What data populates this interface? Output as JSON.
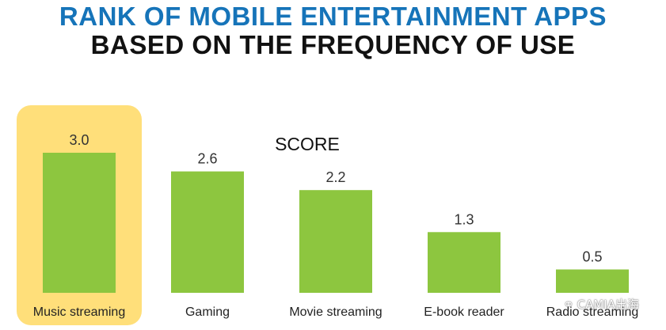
{
  "colors": {
    "title_primary": "#1674b9",
    "title_secondary": "#111111",
    "bar": "#8dc63f",
    "highlight": "#ffdf7a",
    "text": "#333333"
  },
  "chart_data": {
    "type": "bar",
    "title": "RANK OF MOBILE ENTERTAINMENT APPS",
    "subtitle": "BASED ON THE FREQUENCY OF USE",
    "series_label": "SCORE",
    "categories": [
      "Music streaming",
      "Gaming",
      "Movie streaming",
      "E-book reader",
      "Radio streaming"
    ],
    "values": [
      3.0,
      2.6,
      2.2,
      1.3,
      0.5
    ],
    "value_labels": [
      "3.0",
      "2.6",
      "2.2",
      "1.3",
      "0.5"
    ],
    "highlighted_category": "Music streaming",
    "ylim": [
      0,
      3.0
    ],
    "grid": false,
    "legend": "none"
  },
  "watermark": {
    "icon": "wechat-icon",
    "text": "CAMIA出海"
  }
}
